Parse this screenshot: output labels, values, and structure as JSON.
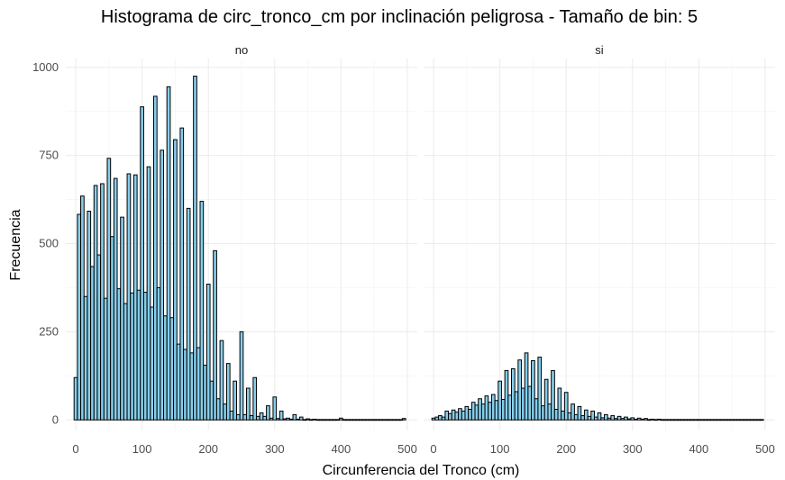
{
  "chart_data": {
    "type": "bar",
    "title": "Histograma de circ_tronco_cm por inclinación peligrosa - Tamaño de bin: 5",
    "xlabel": "Circunferencia del Tronco (cm)",
    "ylabel": "Frecuencia",
    "bin_width": 5,
    "xlim": [
      -15,
      515
    ],
    "ylim": [
      -30,
      1025
    ],
    "x_ticks": [
      0,
      100,
      200,
      300,
      400,
      500
    ],
    "y_ticks": [
      0,
      250,
      500,
      750,
      1000
    ],
    "grid": true,
    "colors": {
      "fill": "#87ceeb",
      "outline": "#000000"
    },
    "panels": [
      {
        "label": "no",
        "bins": [
          [
            0,
            120
          ],
          [
            5,
            583
          ],
          [
            10,
            635
          ],
          [
            15,
            350
          ],
          [
            20,
            592
          ],
          [
            25,
            435
          ],
          [
            30,
            665
          ],
          [
            35,
            468
          ],
          [
            40,
            670
          ],
          [
            45,
            345
          ],
          [
            50,
            742
          ],
          [
            55,
            520
          ],
          [
            60,
            685
          ],
          [
            65,
            372
          ],
          [
            70,
            575
          ],
          [
            75,
            330
          ],
          [
            80,
            698
          ],
          [
            85,
            360
          ],
          [
            90,
            695
          ],
          [
            95,
            368
          ],
          [
            100,
            888
          ],
          [
            105,
            362
          ],
          [
            110,
            718
          ],
          [
            115,
            320
          ],
          [
            120,
            918
          ],
          [
            125,
            375
          ],
          [
            130,
            765
          ],
          [
            135,
            295
          ],
          [
            140,
            945
          ],
          [
            145,
            290
          ],
          [
            150,
            795
          ],
          [
            155,
            215
          ],
          [
            160,
            828
          ],
          [
            165,
            200
          ],
          [
            170,
            600
          ],
          [
            175,
            190
          ],
          [
            180,
            975
          ],
          [
            185,
            205
          ],
          [
            190,
            620
          ],
          [
            195,
            155
          ],
          [
            200,
            385
          ],
          [
            205,
            110
          ],
          [
            210,
            480
          ],
          [
            215,
            60
          ],
          [
            220,
            225
          ],
          [
            225,
            45
          ],
          [
            230,
            160
          ],
          [
            235,
            25
          ],
          [
            240,
            110
          ],
          [
            245,
            15
          ],
          [
            250,
            250
          ],
          [
            255,
            15
          ],
          [
            260,
            90
          ],
          [
            265,
            12
          ],
          [
            270,
            120
          ],
          [
            275,
            10
          ],
          [
            280,
            20
          ],
          [
            285,
            10
          ],
          [
            290,
            40
          ],
          [
            295,
            5
          ],
          [
            300,
            65
          ],
          [
            305,
            4
          ],
          [
            310,
            25
          ],
          [
            315,
            3
          ],
          [
            320,
            5
          ],
          [
            325,
            2
          ],
          [
            330,
            15
          ],
          [
            335,
            2
          ],
          [
            340,
            8
          ],
          [
            345,
            1
          ],
          [
            350,
            3
          ],
          [
            355,
            1
          ],
          [
            360,
            2
          ],
          [
            365,
            1
          ],
          [
            370,
            1
          ],
          [
            375,
            1
          ],
          [
            380,
            1
          ],
          [
            385,
            1
          ],
          [
            390,
            1
          ],
          [
            395,
            1
          ],
          [
            400,
            5
          ],
          [
            405,
            1
          ],
          [
            410,
            1
          ],
          [
            415,
            1
          ],
          [
            420,
            1
          ],
          [
            425,
            1
          ],
          [
            430,
            1
          ],
          [
            435,
            1
          ],
          [
            440,
            1
          ],
          [
            445,
            1
          ],
          [
            450,
            1
          ],
          [
            455,
            1
          ],
          [
            460,
            1
          ],
          [
            465,
            1
          ],
          [
            470,
            1
          ],
          [
            475,
            1
          ],
          [
            480,
            1
          ],
          [
            485,
            1
          ],
          [
            490,
            1
          ],
          [
            495,
            4
          ]
        ]
      },
      {
        "label": "si",
        "bins": [
          [
            0,
            5
          ],
          [
            5,
            8
          ],
          [
            10,
            12
          ],
          [
            15,
            8
          ],
          [
            20,
            25
          ],
          [
            25,
            18
          ],
          [
            30,
            28
          ],
          [
            35,
            22
          ],
          [
            40,
            32
          ],
          [
            45,
            25
          ],
          [
            50,
            38
          ],
          [
            55,
            30
          ],
          [
            60,
            50
          ],
          [
            65,
            42
          ],
          [
            70,
            60
          ],
          [
            75,
            45
          ],
          [
            80,
            68
          ],
          [
            85,
            50
          ],
          [
            90,
            72
          ],
          [
            95,
            55
          ],
          [
            100,
            110
          ],
          [
            105,
            58
          ],
          [
            110,
            140
          ],
          [
            115,
            70
          ],
          [
            120,
            145
          ],
          [
            125,
            80
          ],
          [
            130,
            170
          ],
          [
            135,
            90
          ],
          [
            140,
            190
          ],
          [
            145,
            95
          ],
          [
            150,
            168
          ],
          [
            155,
            60
          ],
          [
            160,
            178
          ],
          [
            165,
            40
          ],
          [
            170,
            115
          ],
          [
            175,
            45
          ],
          [
            180,
            140
          ],
          [
            185,
            30
          ],
          [
            190,
            90
          ],
          [
            195,
            25
          ],
          [
            200,
            78
          ],
          [
            205,
            20
          ],
          [
            210,
            45
          ],
          [
            215,
            15
          ],
          [
            220,
            38
          ],
          [
            225,
            12
          ],
          [
            230,
            28
          ],
          [
            235,
            10
          ],
          [
            240,
            25
          ],
          [
            245,
            8
          ],
          [
            250,
            20
          ],
          [
            255,
            6
          ],
          [
            260,
            15
          ],
          [
            265,
            5
          ],
          [
            270,
            12
          ],
          [
            275,
            4
          ],
          [
            280,
            10
          ],
          [
            285,
            4
          ],
          [
            290,
            8
          ],
          [
            295,
            3
          ],
          [
            300,
            6
          ],
          [
            305,
            2
          ],
          [
            310,
            5
          ],
          [
            315,
            2
          ],
          [
            320,
            4
          ],
          [
            325,
            1
          ],
          [
            330,
            2
          ],
          [
            335,
            1
          ],
          [
            340,
            2
          ],
          [
            345,
            1
          ],
          [
            350,
            1
          ],
          [
            355,
            1
          ],
          [
            360,
            1
          ],
          [
            365,
            1
          ],
          [
            370,
            1
          ],
          [
            375,
            1
          ],
          [
            380,
            1
          ],
          [
            385,
            1
          ],
          [
            390,
            1
          ],
          [
            395,
            1
          ],
          [
            400,
            1
          ],
          [
            405,
            1
          ],
          [
            410,
            1
          ],
          [
            415,
            1
          ],
          [
            420,
            1
          ],
          [
            425,
            1
          ],
          [
            430,
            1
          ],
          [
            435,
            1
          ],
          [
            440,
            1
          ],
          [
            445,
            1
          ],
          [
            450,
            1
          ],
          [
            455,
            1
          ],
          [
            460,
            1
          ],
          [
            465,
            1
          ],
          [
            470,
            1
          ],
          [
            475,
            1
          ],
          [
            480,
            1
          ],
          [
            485,
            1
          ],
          [
            490,
            1
          ],
          [
            495,
            1
          ]
        ]
      }
    ]
  }
}
